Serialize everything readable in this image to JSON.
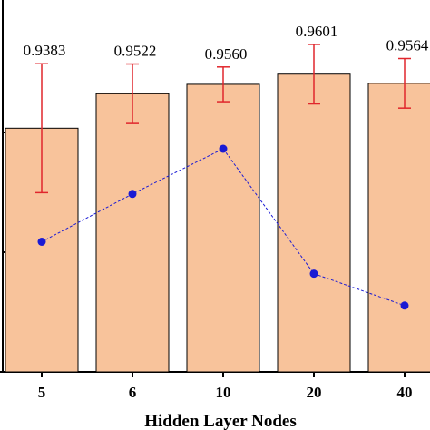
{
  "chart_data": {
    "type": "bar",
    "xlabel": "Hidden Layer Nodes",
    "categories": [
      "5",
      "6",
      "10",
      "20",
      "40"
    ],
    "bar_color": "#f8c39b",
    "error_bar_color": "#e0262c",
    "line_color": "#1a1ad4",
    "series": [
      {
        "kind": "bar",
        "values": [
          0.9383,
          0.9522,
          0.956,
          0.9601,
          0.9564
        ],
        "value_labels": [
          "0.9383",
          "0.9522",
          "0.9560",
          "0.9601",
          "0.9564"
        ],
        "error_upper": [
          0.026,
          0.012,
          0.007,
          0.012,
          0.01
        ],
        "error_lower": [
          0.026,
          0.012,
          0.007,
          0.012,
          0.01
        ]
      },
      {
        "kind": "line",
        "values": [
          0.29,
          0.47,
          0.64,
          0.17,
          0.05
        ]
      }
    ],
    "left_ylim": [
      0.84,
      0.99
    ],
    "right_ylim": [
      -0.2,
      1.2
    ],
    "grid": false,
    "legend": "none"
  }
}
